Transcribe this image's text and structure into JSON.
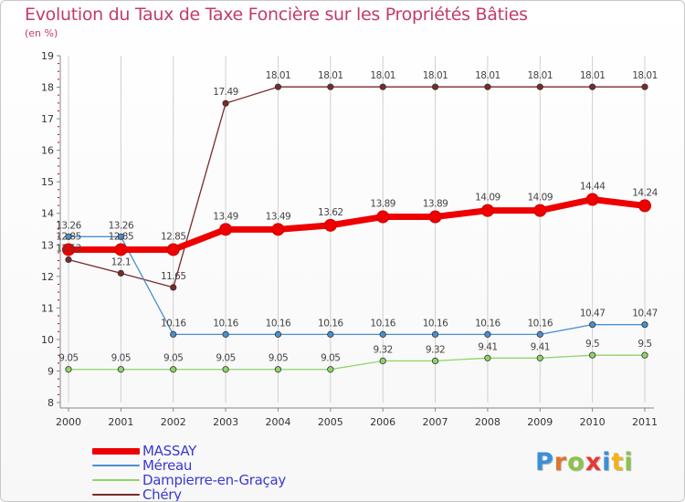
{
  "colors": {
    "title": "#c23b6b",
    "axis_text": "#333333",
    "legend_text": "#3a3ad0",
    "grid": "#d0d0d0",
    "tick_red": "#cc0000"
  },
  "logo": {
    "text": "Proxiti",
    "letters": [
      {
        "ch": "P",
        "color": "#3a8fd8"
      },
      {
        "ch": "r",
        "color": "#e0742a"
      },
      {
        "ch": "o",
        "color": "#8bc34a"
      },
      {
        "ch": "x",
        "color": "#e53935"
      },
      {
        "ch": "i",
        "color": "#3a8fd8"
      },
      {
        "ch": "t",
        "color": "#f2b21c"
      },
      {
        "ch": "i",
        "color": "#8bc34a"
      }
    ]
  },
  "chart_data": {
    "type": "line",
    "title": "Evolution du Taux de Taxe Foncière sur les Propriétés Bâties",
    "ylabel": "(en %)",
    "xlabel": "",
    "x": [
      "2000",
      "2001",
      "2002",
      "2003",
      "2004",
      "2005",
      "2006",
      "2007",
      "2008",
      "2009",
      "2010",
      "2011"
    ],
    "ylim": [
      8,
      19
    ],
    "yticks": [
      "8",
      "9",
      "10",
      "11",
      "12",
      "13",
      "14",
      "15",
      "16",
      "17",
      "18",
      "19"
    ],
    "grid": "vertical",
    "series": [
      {
        "name": "MASSAY",
        "color": "#ee0000",
        "stroke": 7,
        "values": [
          12.85,
          12.85,
          12.85,
          13.49,
          13.49,
          13.62,
          13.89,
          13.89,
          14.09,
          14.09,
          14.44,
          14.24
        ],
        "labels": [
          "12.85",
          "12.85",
          "12.85",
          "13.49",
          "13.49",
          "13.62",
          "13.89",
          "13.89",
          "14.09",
          "14.09",
          "14.44",
          "14.24"
        ]
      },
      {
        "name": "Méreau",
        "color": "#4a8fd0",
        "stroke": 1.3,
        "values": [
          13.26,
          13.26,
          10.16,
          10.16,
          10.16,
          10.16,
          10.16,
          10.16,
          10.16,
          10.16,
          10.47,
          10.47
        ],
        "labels": [
          "13.26",
          "13.26",
          "10.16",
          "10.16",
          "10.16",
          "10.16",
          "10.16",
          "10.16",
          "10.16",
          "10.16",
          "10.47",
          "10.47"
        ]
      },
      {
        "name": "Dampierre-en-Graçay",
        "color": "#8fd46a",
        "stroke": 1.3,
        "values": [
          9.05,
          9.05,
          9.05,
          9.05,
          9.05,
          9.05,
          9.32,
          9.32,
          9.41,
          9.41,
          9.5,
          9.5
        ],
        "labels": [
          "9.05",
          "9.05",
          "9.05",
          "9.05",
          "9.05",
          "9.05",
          "9.32",
          "9.32",
          "9.41",
          "9.41",
          "9.5",
          "9.5"
        ]
      },
      {
        "name": "Chéry",
        "color": "#7a2a2a",
        "stroke": 1.3,
        "values": [
          12.53,
          12.1,
          11.65,
          17.49,
          18.01,
          18.01,
          18.01,
          18.01,
          18.01,
          18.01,
          18.01,
          18.01
        ],
        "labels": [
          "12.53",
          "12.1",
          "11.65",
          "17.49",
          "18.01",
          "18.01",
          "18.01",
          "18.01",
          "18.01",
          "18.01",
          "18.01",
          "18.01"
        ]
      }
    ]
  }
}
